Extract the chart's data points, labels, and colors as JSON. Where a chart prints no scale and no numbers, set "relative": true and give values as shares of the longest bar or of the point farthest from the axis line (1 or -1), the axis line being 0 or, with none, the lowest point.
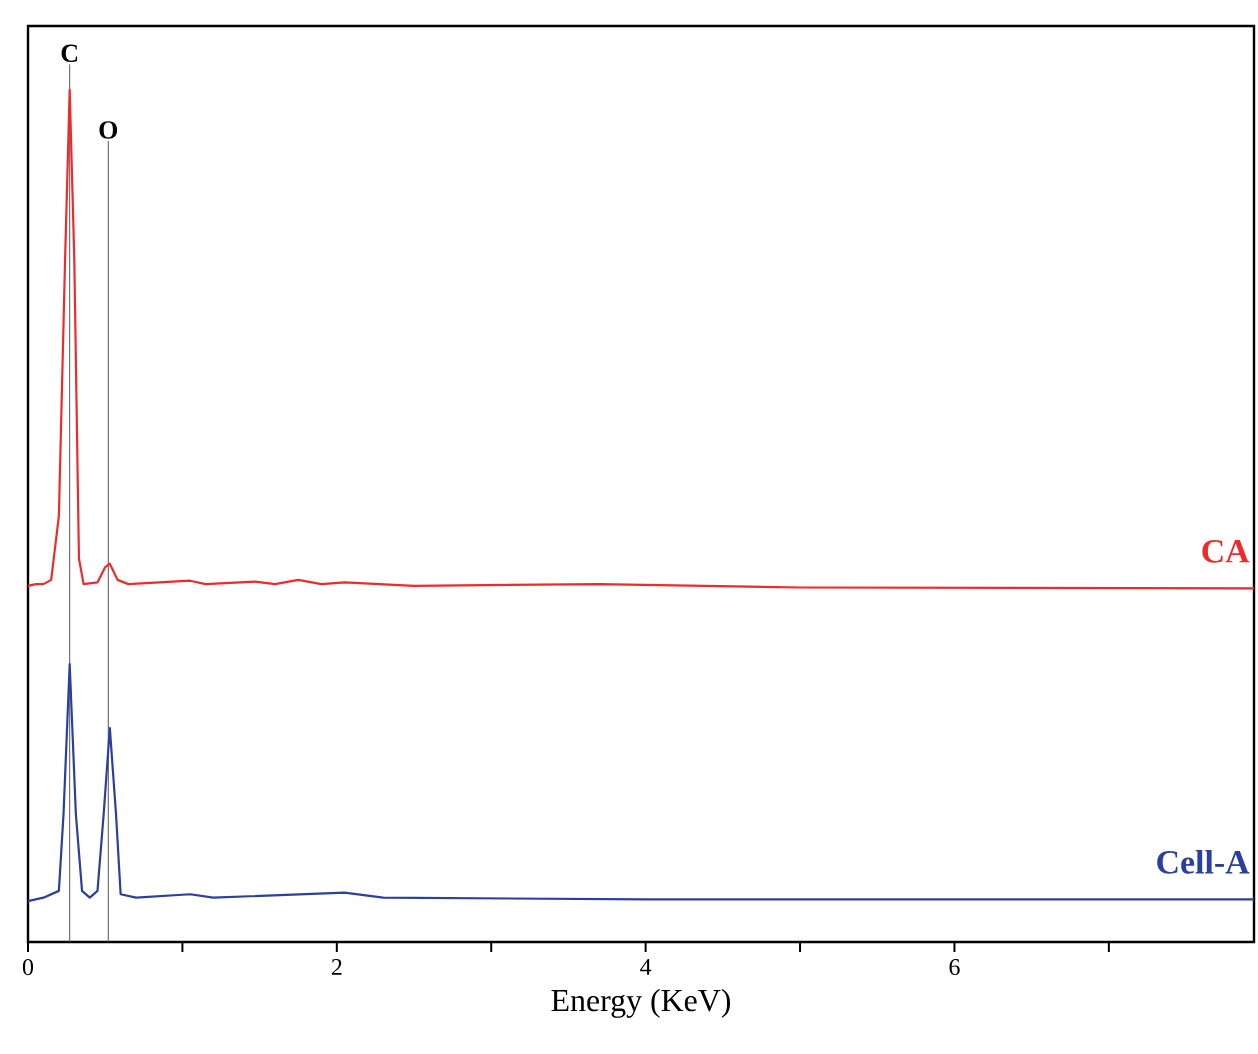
{
  "chart_data": {
    "type": "line",
    "xlabel": "Energy (KeV)",
    "relative": true,
    "xlim": [
      0,
      7.94
    ],
    "xticks": [
      0,
      {
        "value": 1,
        "label": null
      },
      2,
      {
        "value": 3,
        "label": null
      },
      4,
      {
        "value": 5,
        "label": null
      },
      6,
      {
        "value": 7,
        "label": null
      }
    ],
    "legend": false,
    "grid": false,
    "marker": "none",
    "line_style": "solid",
    "ref_lines": [
      {
        "axis": "x",
        "value": 0.27,
        "label": "C",
        "color": "#555555"
      },
      {
        "axis": "x",
        "value": 0.52,
        "label": "O",
        "color": "#555555"
      }
    ],
    "series": [
      {
        "name": "CA",
        "color": "#ee2a2a",
        "x": [
          0,
          0.05,
          0.1,
          0.15,
          0.2,
          0.24,
          0.27,
          0.3,
          0.33,
          0.36,
          0.45,
          0.5,
          0.53,
          0.58,
          0.65,
          1.05,
          1.15,
          1.47,
          1.6,
          1.75,
          1.9,
          2.05,
          2.5,
          3.7,
          5,
          7.94
        ],
        "values": [
          0.418,
          0.42,
          0.42,
          0.425,
          0.5,
          0.8,
          1.0,
          0.8,
          0.45,
          0.42,
          0.422,
          0.44,
          0.444,
          0.425,
          0.42,
          0.424,
          0.42,
          0.423,
          0.42,
          0.425,
          0.42,
          0.422,
          0.418,
          0.42,
          0.416,
          0.415
        ]
      },
      {
        "name": "Cell-A",
        "color": "#2b3f9e",
        "x": [
          0,
          0.1,
          0.2,
          0.23,
          0.27,
          0.31,
          0.35,
          0.4,
          0.45,
          0.49,
          0.53,
          0.57,
          0.6,
          0.7,
          1.05,
          1.2,
          2.05,
          2.3,
          4,
          7.94
        ],
        "values": [
          0.048,
          0.052,
          0.06,
          0.15,
          0.326,
          0.15,
          0.06,
          0.052,
          0.06,
          0.15,
          0.251,
          0.15,
          0.056,
          0.052,
          0.056,
          0.052,
          0.058,
          0.052,
          0.05,
          0.05
        ]
      }
    ]
  }
}
